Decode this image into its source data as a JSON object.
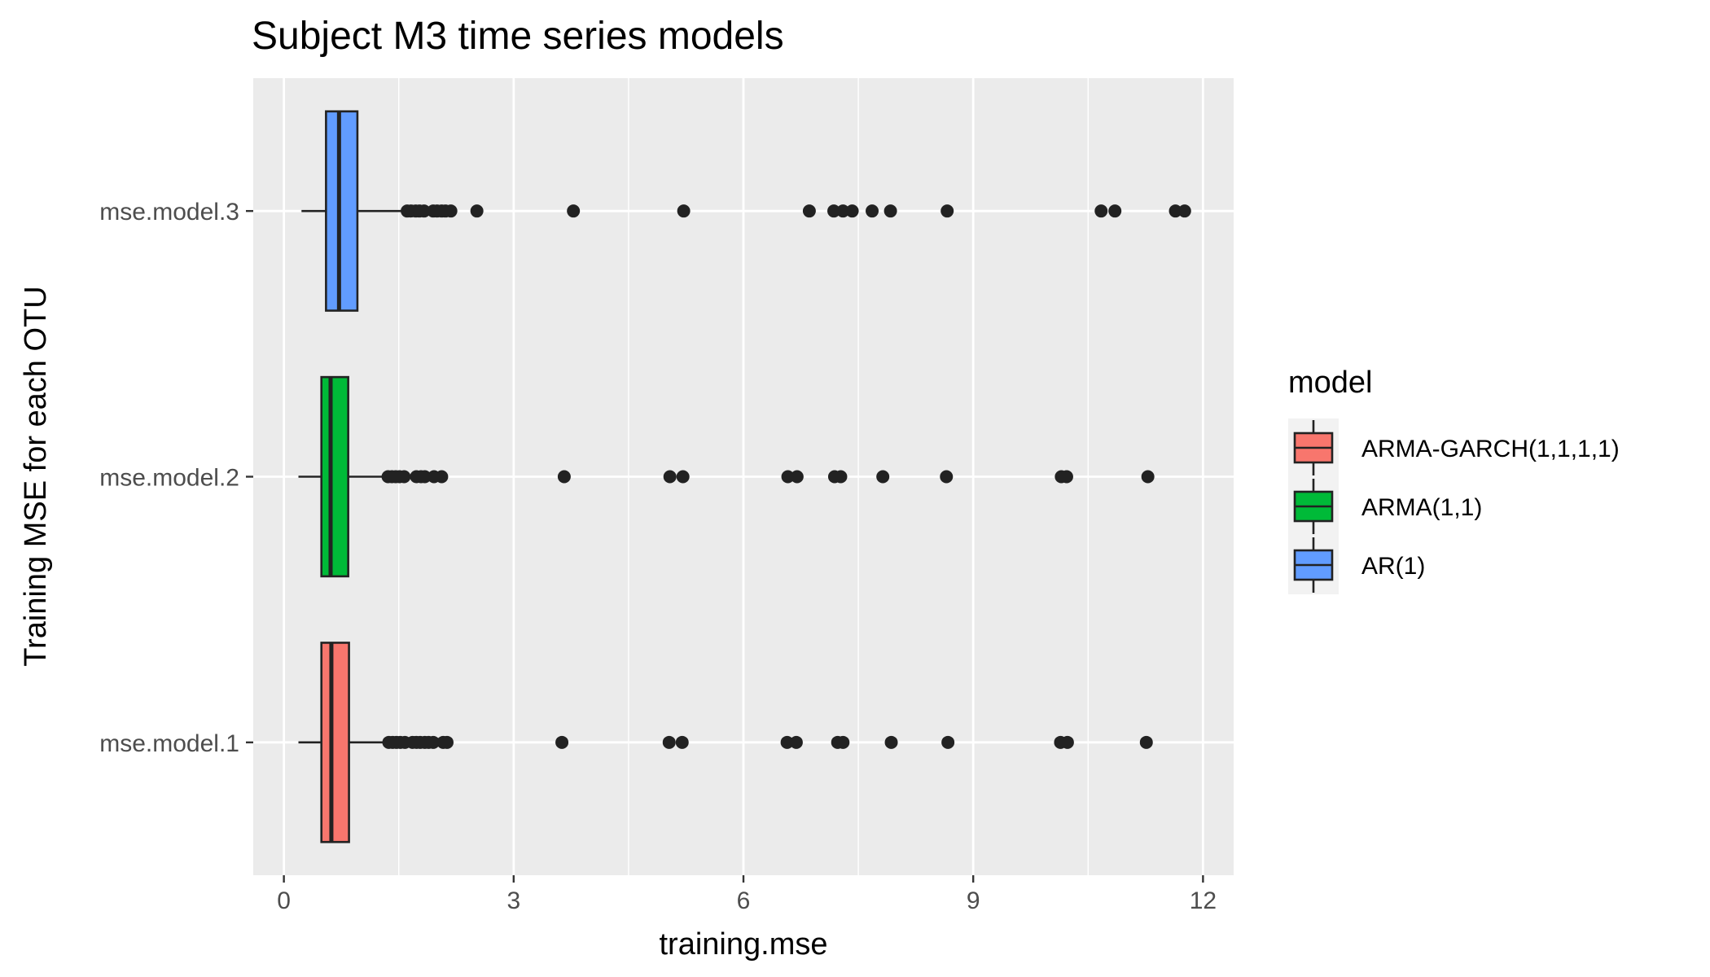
{
  "chart_data": {
    "type": "box",
    "title": "Subject M3 time series models",
    "xlabel": "training.mse",
    "ylabel": "Training MSE for each OTU",
    "xlim": [
      -0.4,
      12.4
    ],
    "x_ticks": [
      0,
      3,
      6,
      9,
      12
    ],
    "x_minor_ticks": [
      1.5,
      4.5,
      7.5,
      10.5
    ],
    "categories": [
      "mse.model.1",
      "mse.model.2",
      "mse.model.3"
    ],
    "grid": true,
    "legend": {
      "title": "model",
      "placement": "right",
      "entries": [
        {
          "label": "ARMA-GARCH(1,1,1,1)",
          "color": "#F8766D"
        },
        {
          "label": "ARMA(1,1)",
          "color": "#00BA38"
        },
        {
          "label": "AR(1)",
          "color": "#619CFF"
        }
      ]
    },
    "series": [
      {
        "category": "mse.model.1",
        "color": "#F8766D",
        "min": 0.19,
        "q1": 0.49,
        "median": 0.62,
        "q3": 0.85,
        "max": 1.35,
        "outliers": [
          1.37,
          1.42,
          1.47,
          1.52,
          1.58,
          1.68,
          1.73,
          1.78,
          1.84,
          1.89,
          1.95,
          2.08,
          2.13,
          3.63,
          5.03,
          5.2,
          6.57,
          6.69,
          7.23,
          7.3,
          7.93,
          8.67,
          10.14,
          10.23,
          11.26
        ]
      },
      {
        "category": "mse.model.2",
        "color": "#00BA38",
        "min": 0.19,
        "q1": 0.49,
        "median": 0.61,
        "q3": 0.84,
        "max": 1.33,
        "outliers": [
          1.36,
          1.41,
          1.46,
          1.51,
          1.57,
          1.73,
          1.79,
          1.84,
          1.96,
          2.06,
          3.66,
          5.04,
          5.21,
          6.58,
          6.7,
          7.19,
          7.27,
          7.82,
          8.65,
          10.15,
          10.22,
          11.28
        ]
      },
      {
        "category": "mse.model.3",
        "color": "#619CFF",
        "min": 0.23,
        "q1": 0.55,
        "median": 0.72,
        "q3": 0.96,
        "max": 1.55,
        "outliers": [
          1.61,
          1.66,
          1.72,
          1.77,
          1.83,
          1.95,
          2.0,
          2.06,
          2.11,
          2.18,
          2.52,
          3.78,
          5.22,
          6.86,
          7.18,
          7.3,
          7.42,
          7.68,
          7.92,
          8.66,
          10.67,
          10.85,
          11.64,
          11.76
        ]
      }
    ]
  }
}
